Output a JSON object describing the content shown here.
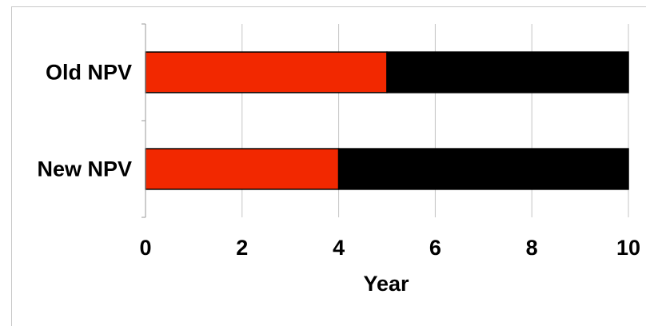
{
  "chart_data": {
    "type": "bar",
    "orientation": "horizontal",
    "stacked": true,
    "categories": [
      "Old NPV",
      "New NPV"
    ],
    "series": [
      {
        "values": [
          5,
          4
        ],
        "color": "#f22800"
      },
      {
        "values": [
          5,
          6
        ],
        "color": "#000000"
      }
    ],
    "title": "",
    "xlabel": "Year",
    "ylabel": "",
    "xlim": [
      0,
      10
    ],
    "xticks": [
      "0",
      "2",
      "4",
      "6",
      "8",
      "10"
    ],
    "grid": "vertical",
    "legend": "none"
  }
}
